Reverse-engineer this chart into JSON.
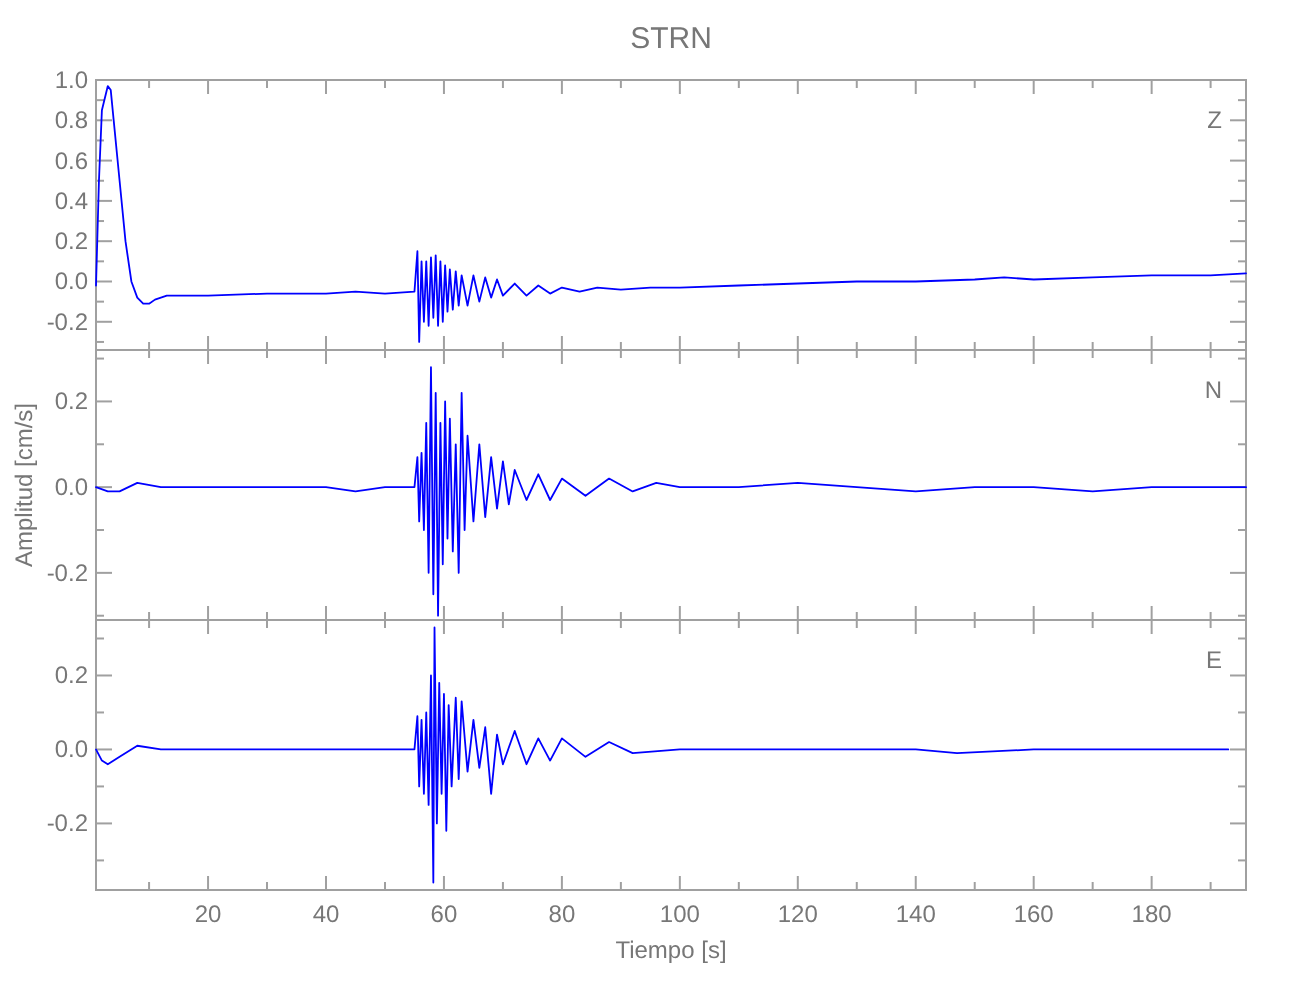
{
  "chart_data": [
    {
      "type": "line",
      "title": "STRN",
      "annotations": [
        "Z"
      ],
      "tick_labels": "y",
      "xlim": [
        1,
        196
      ],
      "ylim": [
        -0.34,
        1.0
      ],
      "xticks": [
        {
          "value": 10,
          "label": null
        },
        {
          "value": 20,
          "label": null
        },
        {
          "value": 30,
          "label": null
        },
        {
          "value": 40,
          "label": null
        },
        {
          "value": 50,
          "label": null
        },
        {
          "value": 60,
          "label": null
        },
        {
          "value": 70,
          "label": null
        },
        {
          "value": 80,
          "label": null
        },
        {
          "value": 90,
          "label": null
        },
        {
          "value": 100,
          "label": null
        },
        {
          "value": 110,
          "label": null
        },
        {
          "value": 120,
          "label": null
        },
        {
          "value": 130,
          "label": null
        },
        {
          "value": 140,
          "label": null
        },
        {
          "value": 150,
          "label": null
        },
        {
          "value": 160,
          "label": null
        },
        {
          "value": 170,
          "label": null
        },
        {
          "value": 180,
          "label": null
        },
        {
          "value": 190,
          "label": null
        }
      ],
      "yticks": [
        {
          "value": -0.3,
          "label": null
        },
        -0.2,
        {
          "value": -0.1,
          "label": null
        },
        {
          "value": 0,
          "label": "0.0"
        },
        {
          "value": 0.1,
          "label": null
        },
        0.2,
        {
          "value": 0.3,
          "label": null
        },
        0.4,
        {
          "value": 0.5,
          "label": null
        },
        0.6,
        {
          "value": 0.7,
          "label": null
        },
        0.8,
        {
          "value": 0.9,
          "label": null
        },
        {
          "value": 1,
          "label": "1.0"
        }
      ],
      "series": [
        {
          "color": "#0000ff",
          "x": [
            1,
            1.5,
            2,
            3,
            3.5,
            4,
            5,
            6,
            7,
            8,
            9,
            10,
            11,
            13,
            15,
            20,
            30,
            40,
            45,
            50,
            55,
            55.5,
            55.8,
            56.2,
            56.6,
            57,
            57.4,
            57.8,
            58.2,
            58.6,
            59,
            59.4,
            59.8,
            60.2,
            60.6,
            61,
            61.5,
            62,
            62.5,
            63,
            64,
            65,
            66,
            67,
            68,
            69,
            70,
            72,
            74,
            76,
            78,
            80,
            83,
            86,
            90,
            95,
            100,
            110,
            120,
            130,
            140,
            150,
            155,
            160,
            170,
            180,
            190,
            196
          ],
          "values": [
            -0.02,
            0.5,
            0.85,
            0.97,
            0.95,
            0.8,
            0.5,
            0.2,
            0.0,
            -0.08,
            -0.11,
            -0.11,
            -0.09,
            -0.07,
            -0.07,
            -0.07,
            -0.06,
            -0.06,
            -0.05,
            -0.06,
            -0.05,
            0.15,
            -0.3,
            0.1,
            -0.2,
            0.1,
            -0.22,
            0.12,
            -0.18,
            0.13,
            -0.22,
            0.1,
            -0.2,
            0.08,
            -0.15,
            0.06,
            -0.14,
            0.05,
            -0.12,
            0.03,
            -0.12,
            0.03,
            -0.1,
            0.02,
            -0.08,
            0.01,
            -0.07,
            -0.01,
            -0.07,
            -0.02,
            -0.06,
            -0.03,
            -0.05,
            -0.03,
            -0.04,
            -0.03,
            -0.03,
            -0.02,
            -0.01,
            0.0,
            0.0,
            0.01,
            0.02,
            0.01,
            0.02,
            0.03,
            0.03,
            0.04
          ]
        }
      ]
    },
    {
      "type": "line",
      "ylabel": "Amplitud [cm/s]",
      "annotations": [
        "N"
      ],
      "tick_labels": "y",
      "xlim": [
        1,
        196
      ],
      "ylim": [
        -0.31,
        0.32
      ],
      "xticks": [
        {
          "value": 10,
          "label": null
        },
        {
          "value": 20,
          "label": null
        },
        {
          "value": 30,
          "label": null
        },
        {
          "value": 40,
          "label": null
        },
        {
          "value": 50,
          "label": null
        },
        {
          "value": 60,
          "label": null
        },
        {
          "value": 70,
          "label": null
        },
        {
          "value": 80,
          "label": null
        },
        {
          "value": 90,
          "label": null
        },
        {
          "value": 100,
          "label": null
        },
        {
          "value": 110,
          "label": null
        },
        {
          "value": 120,
          "label": null
        },
        {
          "value": 130,
          "label": null
        },
        {
          "value": 140,
          "label": null
        },
        {
          "value": 150,
          "label": null
        },
        {
          "value": 160,
          "label": null
        },
        {
          "value": 170,
          "label": null
        },
        {
          "value": 180,
          "label": null
        },
        {
          "value": 190,
          "label": null
        }
      ],
      "yticks": [
        {
          "value": -0.3,
          "label": null
        },
        -0.2,
        {
          "value": -0.1,
          "label": null
        },
        {
          "value": 0,
          "label": "0.0"
        },
        {
          "value": 0.1,
          "label": null
        },
        0.2,
        {
          "value": 0.3,
          "label": null
        }
      ],
      "series": [
        {
          "color": "#0000ff",
          "x": [
            1,
            3,
            5,
            8,
            12,
            20,
            30,
            40,
            45,
            50,
            55,
            55.5,
            55.8,
            56.2,
            56.6,
            57,
            57.4,
            57.8,
            58.2,
            58.6,
            59,
            59.4,
            59.8,
            60.2,
            60.6,
            61,
            61.5,
            62,
            62.5,
            63,
            63.5,
            64,
            65,
            66,
            67,
            68,
            69,
            70,
            71,
            72,
            74,
            76,
            78,
            80,
            84,
            88,
            92,
            96,
            100,
            110,
            120,
            130,
            140,
            150,
            160,
            170,
            180,
            190,
            196
          ],
          "values": [
            0,
            -0.01,
            -0.01,
            0.01,
            0,
            0,
            0,
            0,
            -0.01,
            0,
            0,
            0.07,
            -0.08,
            0.08,
            -0.1,
            0.15,
            -0.2,
            0.28,
            -0.25,
            0.22,
            -0.3,
            0.15,
            -0.18,
            0.2,
            -0.12,
            0.16,
            -0.15,
            0.1,
            -0.2,
            0.22,
            -0.1,
            0.12,
            -0.08,
            0.1,
            -0.07,
            0.07,
            -0.05,
            0.06,
            -0.04,
            0.04,
            -0.03,
            0.03,
            -0.03,
            0.02,
            -0.02,
            0.02,
            -0.01,
            0.01,
            0,
            0,
            0.01,
            0,
            -0.01,
            0,
            0,
            -0.01,
            0,
            0,
            0
          ]
        }
      ]
    },
    {
      "type": "line",
      "xlabel": "Tiempo [s]",
      "annotations": [
        "E"
      ],
      "xlim": [
        1,
        196
      ],
      "ylim": [
        -0.38,
        0.35
      ],
      "xticks": [
        {
          "value": 10,
          "label": null
        },
        20,
        {
          "value": 30,
          "label": null
        },
        40,
        {
          "value": 50,
          "label": null
        },
        60,
        {
          "value": 70,
          "label": null
        },
        80,
        {
          "value": 90,
          "label": null
        },
        100,
        {
          "value": 110,
          "label": null
        },
        120,
        {
          "value": 130,
          "label": null
        },
        140,
        {
          "value": 150,
          "label": null
        },
        160,
        {
          "value": 170,
          "label": null
        },
        180,
        {
          "value": 190,
          "label": null
        }
      ],
      "yticks": [
        {
          "value": -0.3,
          "label": null
        },
        -0.2,
        {
          "value": -0.1,
          "label": null
        },
        {
          "value": 0,
          "label": "0.0"
        },
        {
          "value": 0.1,
          "label": null
        },
        0.2,
        {
          "value": 0.3,
          "label": null
        }
      ],
      "series": [
        {
          "color": "#0000ff",
          "x": [
            1,
            2,
            3,
            5,
            8,
            12,
            20,
            30,
            40,
            50,
            55,
            55.5,
            55.8,
            56.2,
            56.6,
            57,
            57.4,
            57.8,
            58.2,
            58.4,
            58.8,
            59.2,
            59.6,
            60,
            60.4,
            60.8,
            61.3,
            62,
            62.5,
            63,
            64,
            65,
            66,
            67,
            68,
            69,
            70,
            72,
            74,
            76,
            78,
            80,
            84,
            88,
            92,
            100,
            120,
            140,
            147,
            160,
            180,
            193
          ],
          "values": [
            0,
            -0.03,
            -0.04,
            -0.02,
            0.01,
            0,
            0,
            0,
            0,
            0,
            0,
            0.09,
            -0.1,
            0.08,
            -0.12,
            0.1,
            -0.15,
            0.2,
            -0.36,
            0.33,
            -0.2,
            0.18,
            -0.12,
            0.15,
            -0.22,
            0.12,
            -0.1,
            0.14,
            -0.08,
            0.13,
            -0.06,
            0.08,
            -0.05,
            0.06,
            -0.12,
            0.04,
            -0.04,
            0.05,
            -0.04,
            0.03,
            -0.03,
            0.03,
            -0.02,
            0.02,
            -0.01,
            0,
            0,
            0,
            -0.01,
            0,
            0,
            0
          ]
        }
      ]
    }
  ]
}
